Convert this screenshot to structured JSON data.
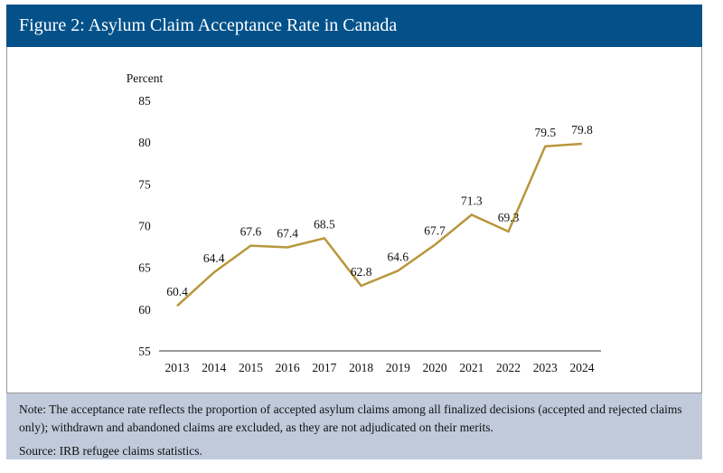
{
  "title": "Figure 2: Asylum Claim Acceptance Rate in Canada",
  "note": "Note: The acceptance rate reflects the proportion of accepted asylum claims among all finalized decisions (accepted and rejected claims only); withdrawn and abandoned claims are excluded, as they are not adjudicated on their merits.",
  "source": "Source: IRB refugee claims statistics.",
  "colors": {
    "header": "#04518a",
    "line": "#b8963a",
    "note_bg": "#c0cadb"
  },
  "chart_data": {
    "type": "line",
    "title": "",
    "ylabel": "Percent",
    "xlabel": "",
    "categories": [
      "2013",
      "2014",
      "2015",
      "2016",
      "2017",
      "2018",
      "2019",
      "2020",
      "2021",
      "2022",
      "2023",
      "2024"
    ],
    "values": [
      60.4,
      64.4,
      67.6,
      67.4,
      68.5,
      62.8,
      64.6,
      67.7,
      71.3,
      69.3,
      79.5,
      79.8
    ],
    "data_labels": [
      "60.4",
      "64.4",
      "67.6",
      "67.4",
      "68.5",
      "62.8",
      "64.6",
      "67.7",
      "71.3",
      "69.3",
      "79.5",
      "79.8"
    ],
    "yticks": [
      55,
      60,
      65,
      70,
      75,
      80,
      85
    ],
    "ylim": [
      55,
      85
    ],
    "grid": false,
    "legend": "none"
  }
}
